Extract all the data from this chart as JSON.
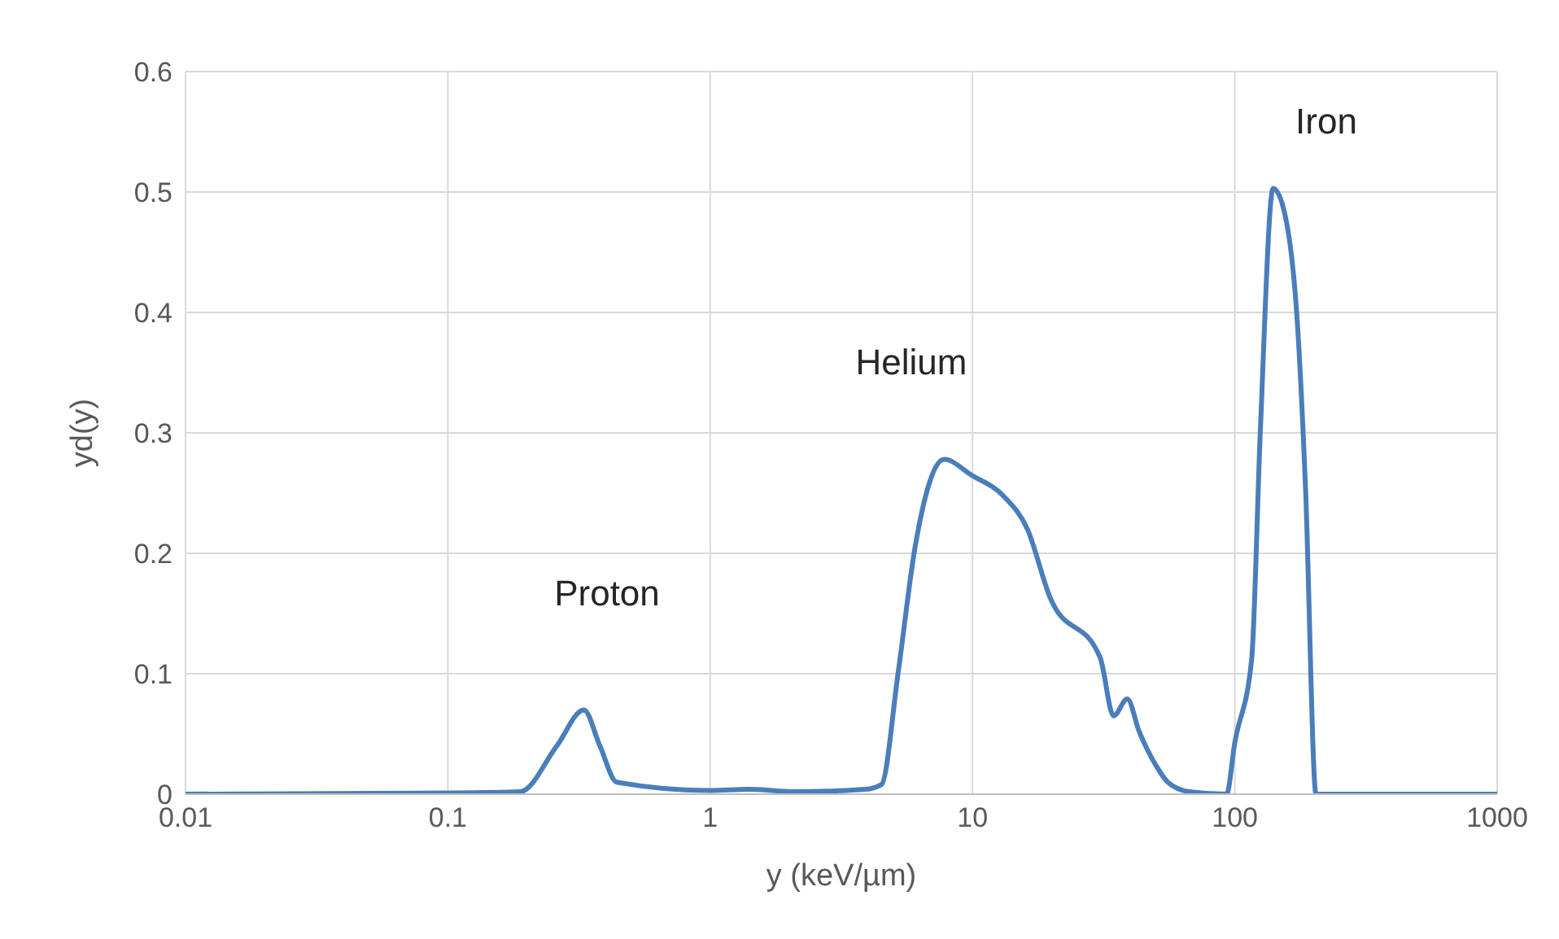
{
  "chart_data": {
    "type": "line",
    "xlabel": "y (keV/µm)",
    "ylabel": "yd(y)",
    "log": "x",
    "grid": true,
    "marker": "none",
    "line_style": "solid",
    "legend": false,
    "xlim": [
      0.01,
      1000
    ],
    "xticks": [
      0.01,
      0.1,
      1,
      10,
      100,
      1000
    ],
    "ylim": [
      0,
      0.6
    ],
    "yticks": [
      0,
      0.1,
      0.2,
      0.3,
      0.4,
      0.5,
      0.6
    ],
    "series": [
      {
        "color": "#4a7ebb",
        "x": [
          0.01,
          0.1,
          0.189,
          0.26,
          0.33,
          0.38,
          0.44,
          1,
          1.4,
          2.1,
          3.9,
          4.5,
          5.2,
          6.05,
          7.8,
          9.9,
          13.2,
          16.2,
          19.7,
          30.7,
          34.5,
          38.9,
          43.2,
          50,
          55.5,
          67,
          93,
          100,
          116,
          125,
          140,
          155,
          174,
          186,
          204,
          1000
        ],
        "values": [
          0,
          0.001,
          0.002,
          0.04,
          0.07,
          0.04,
          0.01,
          0.003,
          0.004,
          0.002,
          0.004,
          0.008,
          0.1,
          0.206,
          0.278,
          0.265,
          0.247,
          0.22,
          0.164,
          0.113,
          0.065,
          0.079,
          0.052,
          0.024,
          0.01,
          0.002,
          0,
          0.043,
          0.113,
          0.3,
          0.503,
          0.482,
          0.384,
          0.254,
          0,
          0
        ]
      }
    ],
    "annotations": [
      "Proton",
      "Helium",
      "Iron"
    ]
  }
}
